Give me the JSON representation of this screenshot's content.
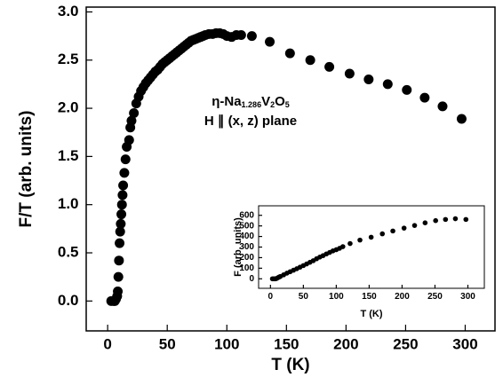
{
  "chart_data": [
    {
      "type": "scatter",
      "xlabel": "T (K)",
      "ylabel": "F/T (arb. units)",
      "color": "#000000",
      "annotation_lines": [
        [
          "η-Na",
          "1.286",
          "V",
          "2",
          "O",
          "5"
        ],
        [
          "H ∥ (x, z) plane"
        ]
      ],
      "x": [
        3,
        5,
        6,
        7,
        8,
        8.5,
        9,
        9.5,
        10,
        10.5,
        11,
        11.5,
        12,
        12.5,
        13,
        14,
        15,
        16,
        18,
        19,
        20,
        22,
        24,
        26,
        28,
        30,
        32,
        34,
        36,
        38,
        40,
        42,
        44,
        46,
        48,
        50,
        52,
        54,
        56,
        58,
        60,
        62,
        64,
        66,
        68,
        70,
        72,
        74,
        76,
        78,
        80,
        82,
        85,
        88,
        91,
        94,
        97,
        100,
        104,
        108,
        112,
        121,
        136,
        153,
        170,
        186,
        203,
        219,
        235,
        251,
        266,
        281,
        297
      ],
      "values": [
        0.0,
        0.0,
        0.0,
        0.02,
        0.05,
        0.1,
        0.25,
        0.42,
        0.6,
        0.72,
        0.8,
        0.9,
        1.0,
        1.1,
        1.2,
        1.33,
        1.47,
        1.6,
        1.67,
        1.8,
        1.87,
        1.95,
        2.05,
        2.12,
        2.18,
        2.22,
        2.26,
        2.29,
        2.32,
        2.35,
        2.38,
        2.4,
        2.43,
        2.46,
        2.48,
        2.5,
        2.52,
        2.54,
        2.56,
        2.58,
        2.6,
        2.62,
        2.64,
        2.66,
        2.68,
        2.7,
        2.71,
        2.72,
        2.73,
        2.74,
        2.75,
        2.76,
        2.77,
        2.77,
        2.78,
        2.78,
        2.77,
        2.75,
        2.74,
        2.76,
        2.76,
        2.75,
        2.69,
        2.57,
        2.5,
        2.43,
        2.36,
        2.3,
        2.25,
        2.19,
        2.11,
        2.02,
        1.89
      ],
      "xlim": [
        -18,
        325
      ],
      "ylim": [
        -0.31,
        3.05
      ],
      "xticks": [
        0,
        50,
        100,
        150,
        200,
        250,
        300
      ],
      "yticks": [
        {
          "value": 0,
          "label": "0.0"
        },
        0.5,
        {
          "value": 1,
          "label": "1.0"
        },
        1.5,
        {
          "value": 2,
          "label": "2.0"
        },
        2.5,
        {
          "value": 3,
          "label": "3.0"
        }
      ]
    },
    {
      "type": "scatter",
      "xlabel": "T (K)",
      "ylabel": "F (arb. units)",
      "color": "#000000",
      "x": [
        3,
        5,
        7,
        9,
        11,
        13,
        15,
        20,
        25,
        30,
        35,
        40,
        45,
        50,
        55,
        60,
        65,
        70,
        75,
        80,
        85,
        90,
        95,
        100,
        105,
        110,
        121,
        136,
        153,
        170,
        186,
        203,
        219,
        235,
        251,
        266,
        281,
        297
      ],
      "values": [
        0,
        0,
        0,
        2,
        9,
        16,
        22,
        37,
        53,
        67,
        81,
        95,
        110,
        125,
        140,
        156,
        171,
        189,
        205,
        219,
        235,
        249,
        264,
        275,
        288,
        304,
        333,
        366,
        393,
        425,
        452,
        479,
        504,
        529,
        550,
        561,
        568,
        561
      ],
      "xlim": [
        -18,
        325
      ],
      "ylim": [
        -90,
        690
      ],
      "xticks": [
        0,
        50,
        100,
        150,
        200,
        250,
        300
      ],
      "yticks": [
        0,
        100,
        200,
        300,
        400,
        500,
        600
      ]
    }
  ]
}
